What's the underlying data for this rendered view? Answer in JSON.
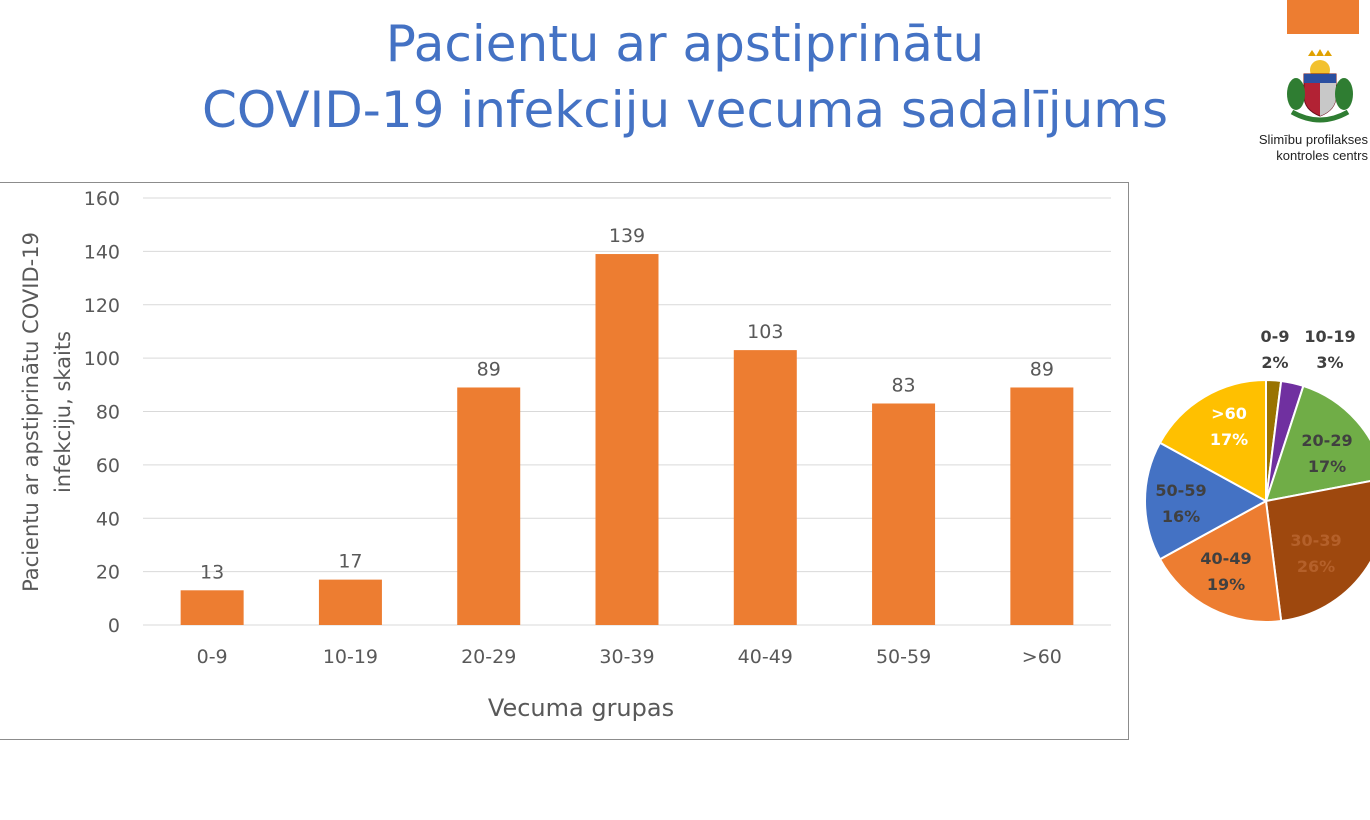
{
  "slide": {
    "title_line1": "Pacientu ar apstiprinātu",
    "title_line2": "COVID-19 infekciju vecuma sadalījums",
    "org_line1": "Slimību profilakses",
    "org_line2": "kontroles centrs"
  },
  "chart_data": [
    {
      "type": "bar",
      "categories": [
        "0-9",
        "10-19",
        "20-29",
        "30-39",
        "40-49",
        "50-59",
        ">60"
      ],
      "values": [
        13,
        17,
        89,
        139,
        103,
        83,
        89
      ],
      "data_labels": [
        "13",
        "17",
        "89",
        "139",
        "103",
        "83",
        "89"
      ],
      "xlabel": "Vecuma grupas",
      "ylabel_line1": "Pacientu ar apstiprinātu COVID-19",
      "ylabel_line2": "infekciju, skaits",
      "ylim": [
        0,
        160
      ],
      "yticks": [
        0,
        20,
        40,
        60,
        80,
        100,
        120,
        140,
        160
      ],
      "grid": true,
      "legend": "none",
      "bar_color": "#ed7d31"
    },
    {
      "type": "pie",
      "slices": [
        {
          "category": "0-9",
          "percent": 2,
          "label": "2%",
          "color": "#997300"
        },
        {
          "category": "10-19",
          "percent": 3,
          "label": "3%",
          "color": "#7030a0"
        },
        {
          "category": "20-29",
          "percent": 17,
          "label": "17%",
          "color": "#70ad47"
        },
        {
          "category": "30-39",
          "percent": 26,
          "label": "26%",
          "color": "#9e480e"
        },
        {
          "category": "40-49",
          "percent": 19,
          "label": "19%",
          "color": "#ed7d31"
        },
        {
          "category": "50-59",
          "percent": 16,
          "label": "16%",
          "color": "#4472c4"
        },
        {
          "category": ">60",
          "percent": 17,
          "label": "17%",
          "color": "#ffc000"
        }
      ]
    }
  ],
  "colors": {
    "title": "#4472c4",
    "accent_block": "#ed7d31",
    "axis_text": "#595959",
    "gridline": "#d9d9d9"
  },
  "icons": [
    "latvian-coat-of-arms-icon"
  ]
}
